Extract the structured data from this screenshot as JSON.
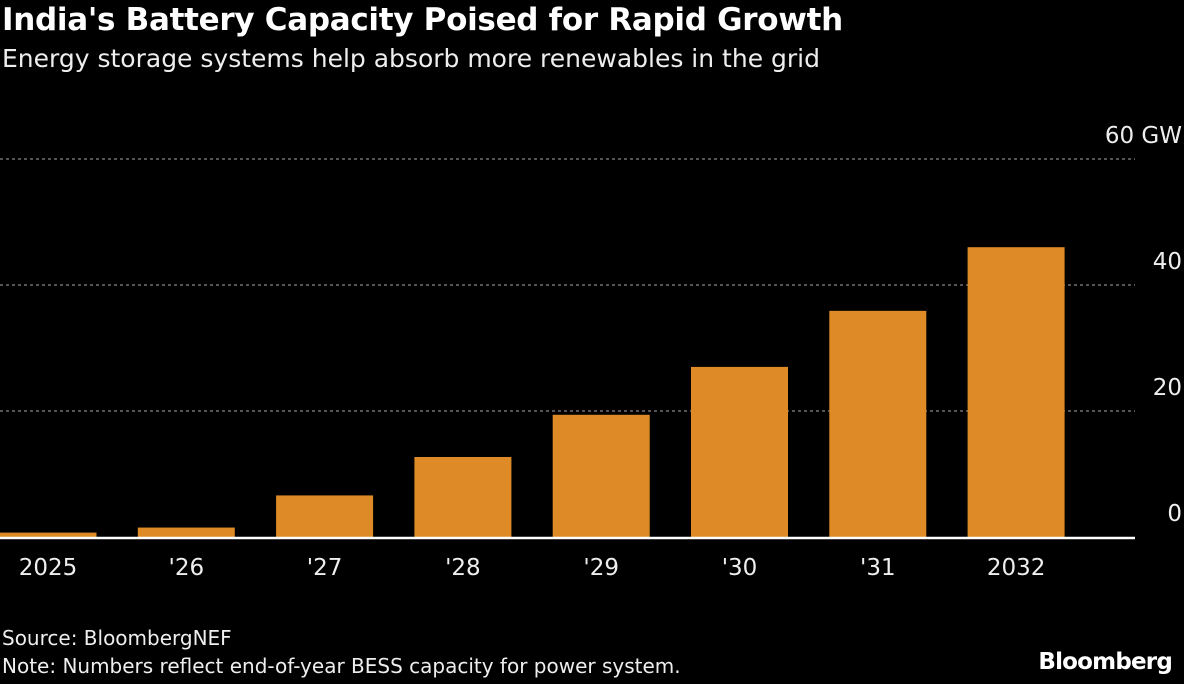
{
  "title": "India's Battery Capacity Poised for Rapid Growth",
  "subtitle": "Energy storage systems help absorb more renewables in the grid",
  "source": "Source: BloombergNEF",
  "note": "Note: Numbers reflect end-of-year BESS capacity for power system.",
  "logo": "Bloomberg",
  "colors": {
    "bar": "#DE8A26",
    "background": "#000000",
    "grid": "#888888"
  },
  "chart_data": {
    "type": "bar",
    "title": "India's Battery Capacity Poised for Rapid Growth",
    "categories": [
      "2025",
      "'26",
      "'27",
      "'28",
      "'29",
      "'30",
      "'31",
      "2032"
    ],
    "values": [
      0.7,
      1.5,
      6.6,
      12.7,
      19.4,
      27,
      35.9,
      46
    ],
    "ylabel": "GW",
    "ylim": [
      0,
      60
    ],
    "yticks": [
      0,
      20,
      40,
      60
    ],
    "ytick_labels": [
      "0",
      "20",
      "40",
      "60 GW"
    ],
    "grid": true,
    "axis_side": "right"
  }
}
